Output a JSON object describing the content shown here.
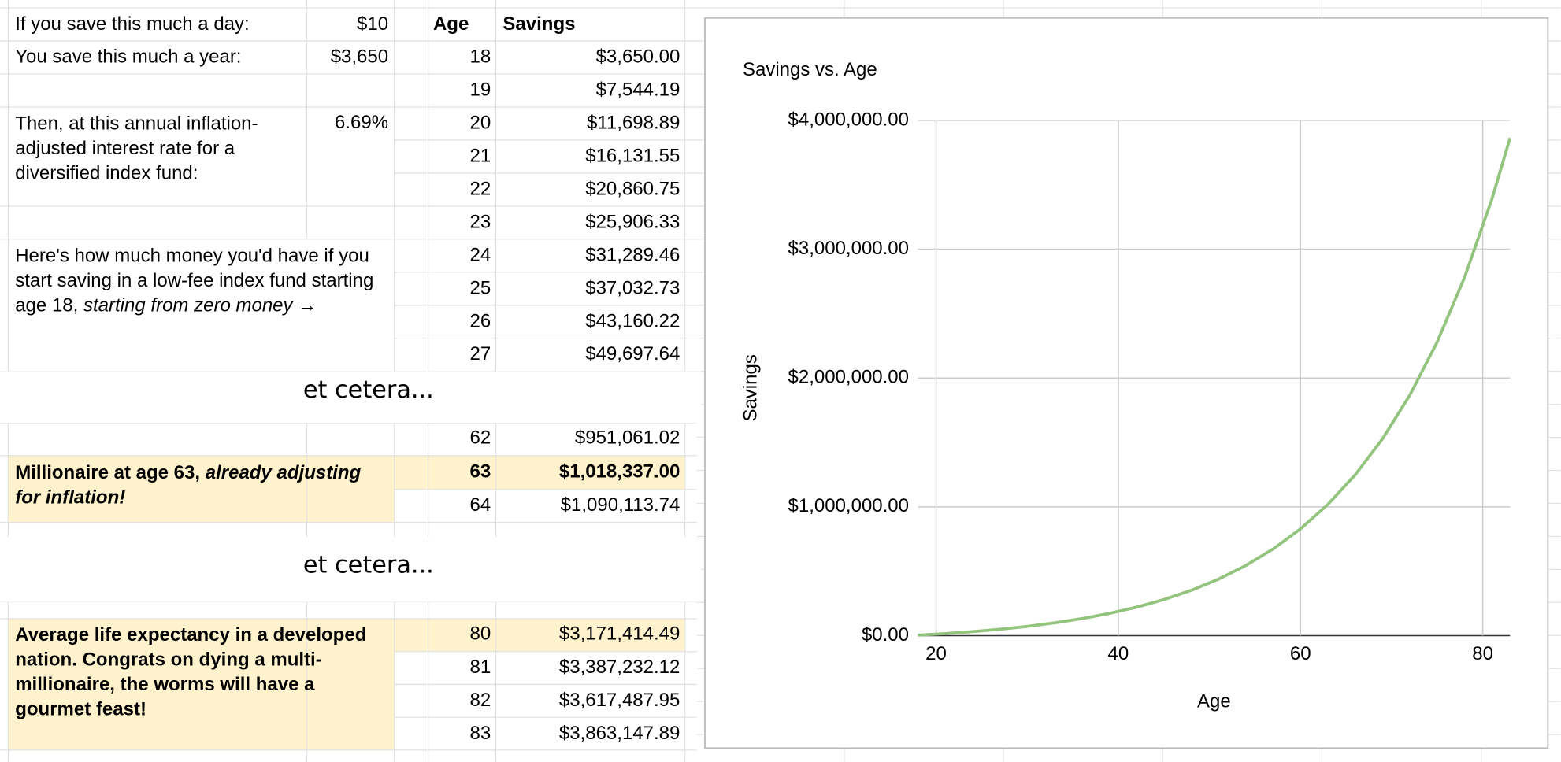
{
  "sheet": {
    "inputs": [
      {
        "label": "If you save this much a day:",
        "value": "$10"
      },
      {
        "label": "You save this much a year:",
        "value": "$3,650"
      },
      {
        "label": "Then, at this annual inflation-adjusted interest rate for a diversified index fund:",
        "value": "6.69%"
      }
    ],
    "note": {
      "text": "Here's how much money you'd have if you start saving in a low-fee index fund starting age 18, ",
      "emphasis": "starting from zero money →"
    },
    "headers": [
      "Age",
      "Savings"
    ],
    "rows_top": [
      [
        "18",
        "$3,650.00"
      ],
      [
        "19",
        "$7,544.19"
      ],
      [
        "20",
        "$11,698.89"
      ],
      [
        "21",
        "$16,131.55"
      ],
      [
        "22",
        "$20,860.75"
      ],
      [
        "23",
        "$25,906.33"
      ],
      [
        "24",
        "$31,289.46"
      ],
      [
        "25",
        "$37,032.73"
      ],
      [
        "26",
        "$43,160.22"
      ],
      [
        "27",
        "$49,697.64"
      ]
    ],
    "gap_label": "et cetera...",
    "rows_mid": [
      [
        "62",
        "$951,061.02"
      ],
      [
        "63",
        "$1,018,337.00"
      ],
      [
        "64",
        "$1,090,113.74"
      ]
    ],
    "millionaire": {
      "text": "Millionaire at age 63, ",
      "emphasis": "already adjusting for inflation!"
    },
    "gap_label_2": "et cetera...",
    "rows_end": [
      [
        "80",
        "$3,171,414.49"
      ],
      [
        "81",
        "$3,387,232.12"
      ],
      [
        "82",
        "$3,617,487.95"
      ],
      [
        "83",
        "$3,863,147.89"
      ]
    ],
    "life_expectancy": "Average life expectancy in a developed nation. Congrats on dying a multi-millionaire, the worms will have a gourmet feast!"
  },
  "chart_data": {
    "type": "line",
    "title": "Savings vs. Age",
    "x_label": "Age",
    "y_label": "Savings",
    "x": [
      18,
      21,
      24,
      27,
      30,
      33,
      36,
      39,
      42,
      45,
      48,
      51,
      54,
      57,
      60,
      63,
      66,
      69,
      72,
      75,
      78,
      81,
      83
    ],
    "values": [
      3650,
      16132,
      31289,
      49698,
      72052,
      99201,
      132172,
      172212,
      220838,
      279891,
      351607,
      438699,
      544467,
      672914,
      828904,
      1018337,
      1248394,
      1527782,
      1867078,
      2279128,
      2779532,
      3387232,
      3863148
    ],
    "color": "#93c47d",
    "xlim": [
      18,
      83
    ],
    "ylim": [
      0,
      4000000
    ],
    "xticks": [
      20,
      40,
      60,
      80
    ],
    "yticks": [
      {
        "value": 0,
        "label": "$0.00"
      },
      {
        "value": 1000000,
        "label": "$1,000,000.00"
      },
      {
        "value": 2000000,
        "label": "$2,000,000.00"
      },
      {
        "value": 3000000,
        "label": "$3,000,000.00"
      },
      {
        "value": 4000000,
        "label": "$4,000,000.00"
      }
    ],
    "grid": true
  }
}
